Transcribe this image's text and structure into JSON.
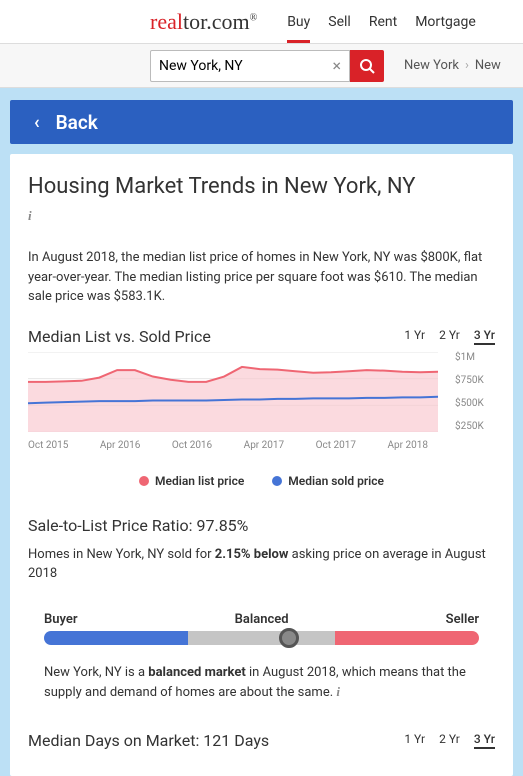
{
  "logo": {
    "pre": "real",
    "mid": "tor.com",
    "sup": "®"
  },
  "nav": {
    "buy": "Buy",
    "sell": "Sell",
    "rent": "Rent",
    "mortgage": "Mortgage"
  },
  "search": {
    "value": "New York, NY"
  },
  "crumb": {
    "a": "New York",
    "b": "New"
  },
  "back": "Back",
  "title": "Housing Market Trends in New York, NY",
  "blurb": "In August 2018, the median list price of homes in New York, NY was $800K, flat year-over-year. The median listing price per square foot was $610. The median sale price was $583.1K.",
  "chart": {
    "title": "Median List vs. Sold Price",
    "ranges": {
      "r1": "1 Yr",
      "r2": "2 Yr",
      "r3": "3 Yr"
    },
    "ylabels": {
      "y1": "$1M",
      "y2": "$750K",
      "y3": "$500K",
      "y4": "$250K"
    },
    "xlabels": {
      "x1": "Oct 2015",
      "x2": "Apr 2016",
      "x3": "Oct 2016",
      "x4": "Apr 2017",
      "x5": "Oct 2017",
      "x6": "Apr 2018"
    },
    "legend": {
      "list": "Median list price",
      "sold": "Median sold price"
    },
    "colors": {
      "list": "#ef6673",
      "listFill": "#f9cbd2",
      "sold": "#4574d6",
      "grid": "#e6e6e6"
    },
    "listSeries": [
      720,
      720,
      725,
      730,
      760,
      830,
      830,
      770,
      740,
      720,
      720,
      770,
      860,
      840,
      835,
      820,
      805,
      810,
      820,
      830,
      825,
      815,
      810,
      815
    ],
    "soldSeries": [
      520,
      525,
      530,
      535,
      540,
      540,
      540,
      545,
      545,
      545,
      545,
      550,
      555,
      555,
      560,
      560,
      565,
      565,
      565,
      570,
      570,
      575,
      575,
      580
    ],
    "ymin": 250,
    "ymax": 1000
  },
  "ratio": {
    "title": "Sale-to-List Price Ratio: 97.85%",
    "text_pre": "Homes in New York, NY sold for ",
    "text_bold": "2.15% below",
    "text_post": " asking price on average in August 2018"
  },
  "gauge": {
    "buyer": "Buyer",
    "balanced": "Balanced",
    "seller": "Seller",
    "colors": {
      "buyer": "#4574d6",
      "balanced": "#c5c5c5",
      "seller": "#ef6673"
    },
    "knob_pct": 54
  },
  "market_text": {
    "pre": "New York, NY is a ",
    "bold": "balanced market",
    "post": " in August 2018, which means that the supply and demand of homes are about the same.  "
  },
  "days": {
    "title": "Median Days on Market: 121 Days",
    "ranges": {
      "r1": "1 Yr",
      "r2": "2 Yr",
      "r3": "3 Yr"
    }
  }
}
